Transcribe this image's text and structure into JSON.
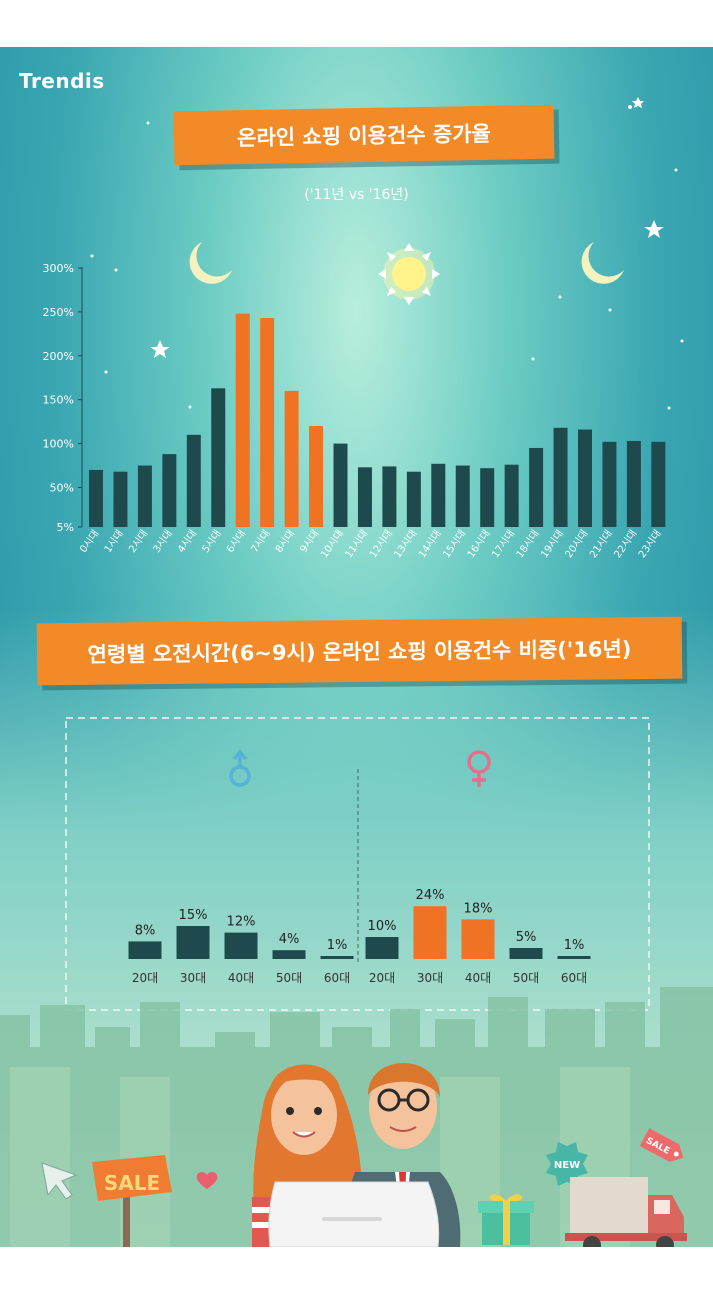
{
  "brand": "Trendis",
  "banner1": "온라인 쇼핑 이용건수 증가율",
  "subtitle": "('11년 vs '16년)",
  "banner2": "연령별 오전시간(6~9시) 온라인 쇼핑 이용건수 비중('16년)",
  "illustration": {
    "sale_sign": "SALE",
    "new_badge": "NEW",
    "sale_tag": "SALE"
  },
  "colors": {
    "dark_bar": "#1f4a4d",
    "highlight_bar": "#f07323",
    "male_symbol": "#56b3d6",
    "female_symbol": "#ea6d8c"
  },
  "chart_data": [
    {
      "type": "bar",
      "y_ticks": [
        "300%",
        "250%",
        "200%",
        "150%",
        "100%",
        "50%",
        "5%"
      ],
      "ylim": [
        5,
        300
      ],
      "categories": [
        "0시대",
        "1시대",
        "2시대",
        "3시대",
        "4시대",
        "5시대",
        "6시대",
        "7시대",
        "8시대",
        "9시대",
        "10시대",
        "11시대",
        "12시대",
        "13시대",
        "14시대",
        "15시대",
        "16시대",
        "17시대",
        "18시대",
        "19시대",
        "20시대",
        "21시대",
        "22시대",
        "23시대"
      ],
      "values": [
        70,
        68,
        75,
        88,
        110,
        163,
        248,
        243,
        160,
        120,
        100,
        73,
        74,
        68,
        77,
        75,
        72,
        76,
        95,
        118,
        116,
        102,
        103,
        102
      ],
      "highlighted": [
        6,
        7,
        8,
        9
      ]
    },
    {
      "type": "bar",
      "group_icon": "male-symbol",
      "categories": [
        "20대",
        "30대",
        "40대",
        "50대",
        "60대"
      ],
      "values": [
        8,
        15,
        12,
        4,
        1
      ],
      "labels": [
        "8%",
        "15%",
        "12%",
        "4%",
        "1%"
      ],
      "highlighted": []
    },
    {
      "type": "bar",
      "group_icon": "female-symbol",
      "categories": [
        "20대",
        "30대",
        "40대",
        "50대",
        "60대"
      ],
      "values": [
        10,
        24,
        18,
        5,
        1
      ],
      "labels": [
        "10%",
        "24%",
        "18%",
        "5%",
        "1%"
      ],
      "highlighted": [
        1,
        2
      ]
    }
  ]
}
